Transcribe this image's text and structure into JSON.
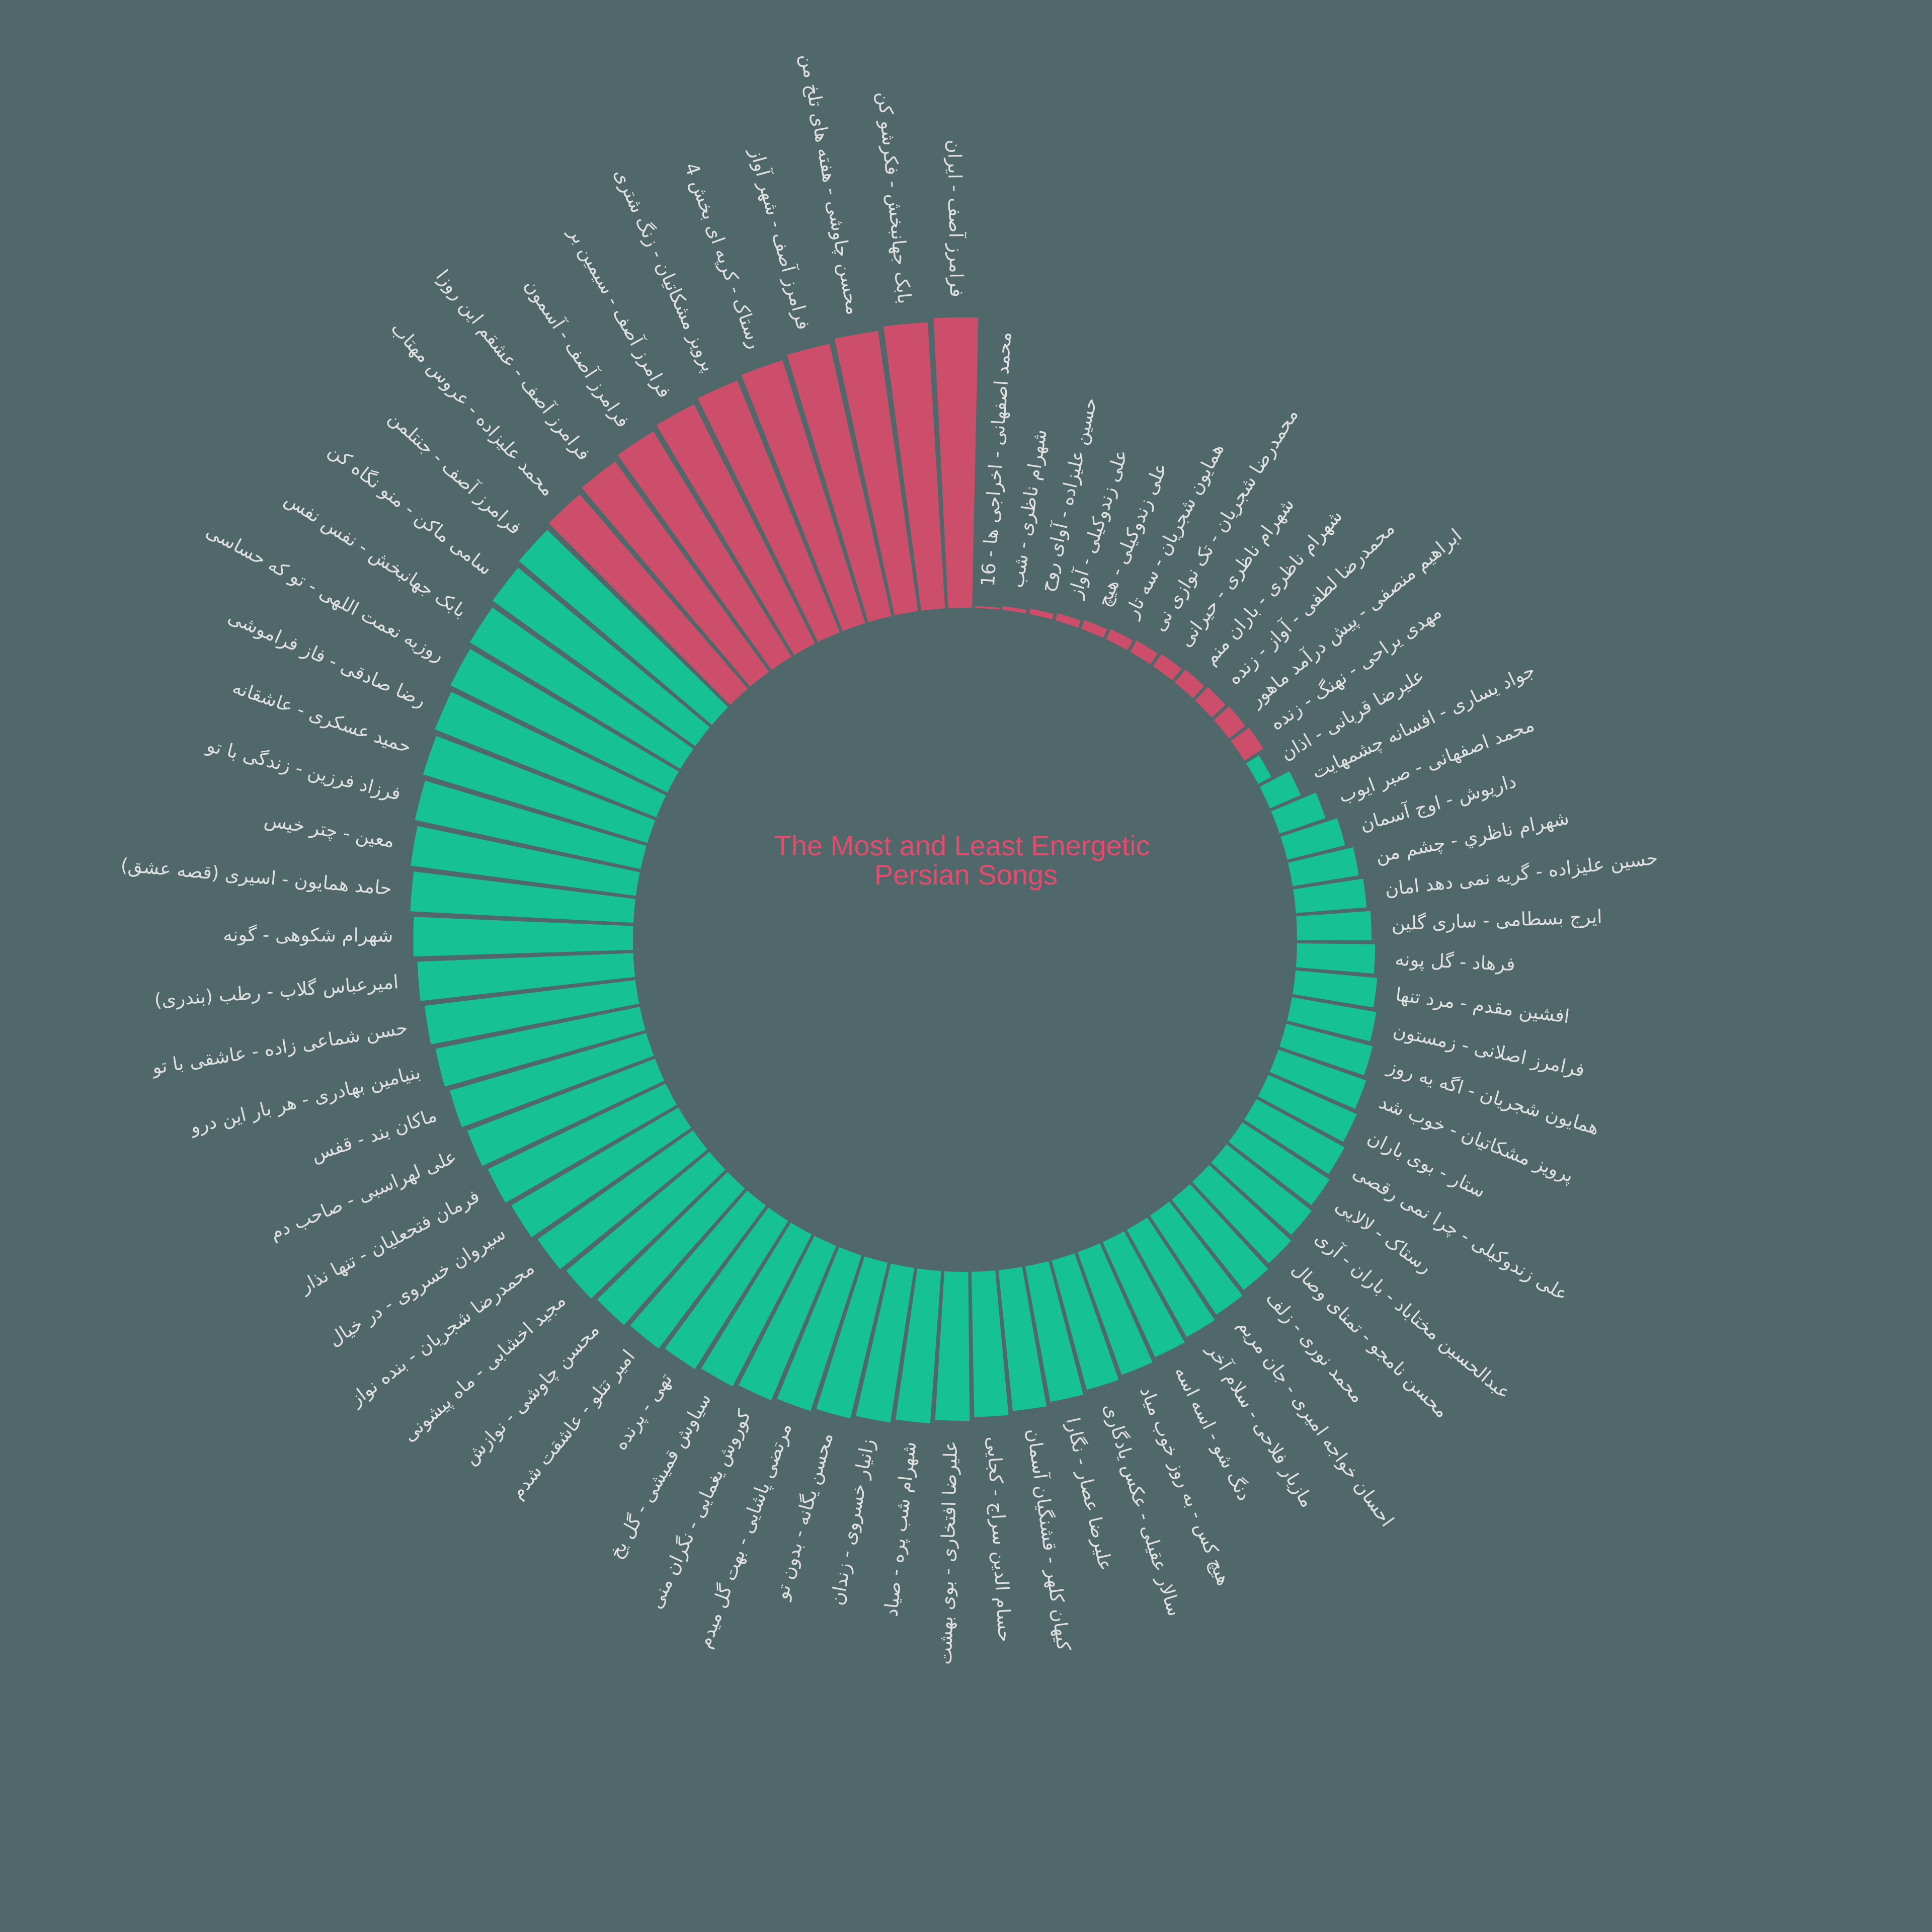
{
  "chart_data": {
    "type": "circular-bar",
    "title": "The Most and Least Energetic Persian Songs",
    "title_lines": [
      "The Most and Least Energetic",
      "Persian Songs"
    ],
    "value_domain": [
      0,
      1
    ],
    "groups": [
      {
        "name": "least energetic",
        "color": "#cc4e6a",
        "categories": [
          "محمد اصفهانی - اخراجی ها - 16",
          "شهرام ناظری - شب",
          "حسین علیزاده - آوای روح",
          "علی زندوکیلی - آواز",
          "علی زندوکیلی - هیچ",
          "همایون شجریان - سه تار",
          "محمدرضا شجریان - تک نوازی نی",
          "شهرام ناظری - حیرانی",
          "شهرام ناظری - باران منم",
          "محمدرضا لطفی - آواز - زنده",
          "ابراهیم منصفی - پیش درآمد ماهور",
          "مهدی یراحی - نهنگ - زنده"
        ],
        "values": [
          0.005,
          0.01,
          0.015,
          0.02,
          0.025,
          0.03,
          0.035,
          0.04,
          0.045,
          0.05,
          0.055,
          0.06
        ]
      },
      {
        "name": "most energetic",
        "color": "#16c194",
        "categories": [
          "علیرضا قربانی - اذان",
          "جواد یساری - افسانه چشمهایت",
          "محمد اصفهانی - صبر ایوب",
          "داریوش - اوج آسمان",
          "شهرام ناظري - چشم من",
          "حسین علیزاده - گریه نمی دهد امان",
          "ایرج بسطامی - ساری گلین",
          "فرهاد - گل پونه",
          "افشین مقدم - مرد تنها",
          "فرامرز اصلانی - زمستون",
          "همایون شجریان - اگه یه روز",
          "پرویز مشکاتیان - خوب شد",
          "ستار - بوی باران",
          "علی زندوکیلی - چرا نمی رقصی",
          "رستاک - لالایی",
          "عبدالحسین مختاباد - باران - آری",
          "محسن نامجو - تمنای وصال",
          "محمد نوری - زلف",
          "احسان خواجه امیری - جان مریم",
          "مازیار فلاحی - سلام آخر",
          "دنگ شو - اسه اسه",
          "هیچ کس - به روز خوب میاد",
          "سالار عقیلی - عکس یادگاری",
          "علیرضا عصار - نگارا",
          "کیهان کلهر - قشنگیان آسمان",
          "حسام الدین سراج - کجایی",
          "علیرضا افتخاری - بوی بهشت",
          "شهرام شب پره - صیاد",
          "زانیار خسروی - زندان",
          "محسن یگانه - بدون تو",
          "مرتضی پاشایی - بهت گل میدم",
          "کوروش یغمایی - نگران منی",
          "سیاوش قمیشی - گل یخ",
          "تهی - پرنده",
          "امیر تتلو - عاشقت شدم",
          "محسن چاوشی - نوازش",
          "مجید اخشابی - ماه پیشونی",
          "محمدرضا شجریان - بنده نواز",
          "سیروان خسروی - در خیال",
          "فرمان فتحعلیان - تنها نذار",
          "علی لهراسبی - صاحب دم",
          "ماکان بند - قفس",
          "بنیامین بهادری - هر بار این درو",
          "حسن شماعی زاده - عاشقی با تو",
          "امیرعباس گلاب - رطب (بندری)",
          "شهرام شکوهی - گونه",
          "حامد همایون - اسیری (قصه عشق)",
          "معین - چتر خیس",
          "فرزاد فرزین - زندگی با تو",
          "حمید عسکری - عاشقانه",
          "رضا صادقی - فاز فراموشی",
          "روزبه نعمت اللهی - تو که حساسی",
          "بابک جهانبخش - نفس نفس",
          "سامی ماکن - منو نگاه کن",
          "فرامرز آصف - جنتلمن"
        ],
        "values": [
          0.04,
          0.09,
          0.13,
          0.16,
          0.18,
          0.19,
          0.2,
          0.21,
          0.22,
          0.23,
          0.24,
          0.25,
          0.26,
          0.27,
          0.28,
          0.29,
          0.3,
          0.31,
          0.32,
          0.33,
          0.34,
          0.35,
          0.36,
          0.37,
          0.38,
          0.39,
          0.4,
          0.41,
          0.42,
          0.43,
          0.44,
          0.45,
          0.46,
          0.47,
          0.48,
          0.49,
          0.5,
          0.51,
          0.52,
          0.53,
          0.54,
          0.55,
          0.56,
          0.57,
          0.58,
          0.59,
          0.6,
          0.61,
          0.62,
          0.63,
          0.64,
          0.65,
          0.66,
          0.67,
          0.68
        ]
      },
      {
        "name": "most energetic (top)",
        "color": "#cc4e6a",
        "categories": [
          "محمد علیزاده - عروس مهتاب",
          "فرامرز آصف - عشقم این روزا",
          "فرامرز آصف - آسمون",
          "فرامرز آصف - سیمین بر",
          "پرویز مشکاتیان - زنگ شتری",
          "رستاک - کرپه ای بخش 4",
          "فرامرز آصف - شهر آواز",
          "محسن چاوشی - هفته های تلخ من",
          "بابک جهانبخش - فکرشو کن",
          "فرامرز آصف - ایران"
        ],
        "values": [
          0.69,
          0.7,
          0.71,
          0.72,
          0.73,
          0.74,
          0.75,
          0.76,
          0.77,
          0.78
        ]
      }
    ]
  }
}
